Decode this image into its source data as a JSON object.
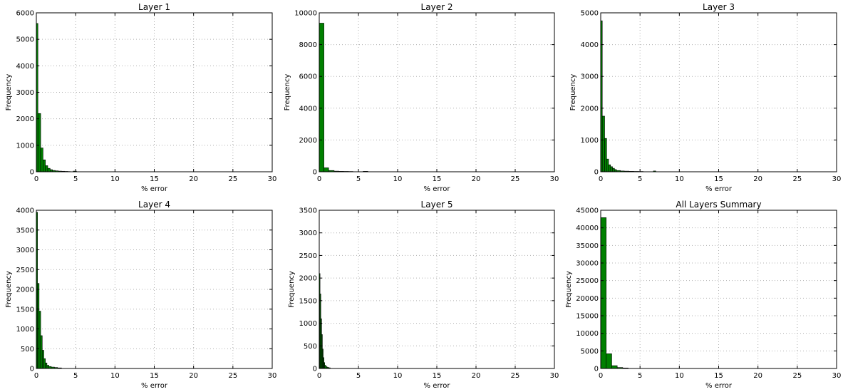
{
  "chart_data": [
    {
      "type": "bar",
      "title": "Layer 1",
      "xlabel": "% error",
      "ylabel": "Frequency",
      "xlim": [
        0,
        30
      ],
      "ylim": [
        0,
        6000
      ],
      "xticks": [
        "0",
        "5",
        "10",
        "15",
        "20",
        "25",
        "30"
      ],
      "yticks": [
        "0",
        "1000",
        "2000",
        "3000",
        "4000",
        "5000",
        "6000"
      ],
      "grid": true,
      "bar_color": "#008000",
      "bins": [
        {
          "x0": 0.0,
          "x1": 0.2,
          "value": 5600
        },
        {
          "x0": 0.2,
          "x1": 0.55,
          "value": 2200
        },
        {
          "x0": 0.55,
          "x1": 0.85,
          "value": 900
        },
        {
          "x0": 0.85,
          "x1": 1.15,
          "value": 450
        },
        {
          "x0": 1.15,
          "x1": 1.45,
          "value": 230
        },
        {
          "x0": 1.45,
          "x1": 1.75,
          "value": 130
        },
        {
          "x0": 1.75,
          "x1": 2.05,
          "value": 80
        },
        {
          "x0": 2.05,
          "x1": 2.4,
          "value": 50
        },
        {
          "x0": 2.4,
          "x1": 2.8,
          "value": 35
        },
        {
          "x0": 2.8,
          "x1": 3.2,
          "value": 25
        },
        {
          "x0": 3.2,
          "x1": 3.6,
          "value": 20
        },
        {
          "x0": 3.6,
          "x1": 4.0,
          "value": 15
        },
        {
          "x0": 4.0,
          "x1": 4.3,
          "value": 10
        },
        {
          "x0": 4.7,
          "x1": 5.1,
          "value": 25
        }
      ]
    },
    {
      "type": "bar",
      "title": "Layer 2",
      "xlabel": "% error",
      "ylabel": "Frequency",
      "xlim": [
        0,
        30
      ],
      "ylim": [
        0,
        10000
      ],
      "xticks": [
        "0",
        "5",
        "10",
        "15",
        "20",
        "25",
        "30"
      ],
      "yticks": [
        "0",
        "2000",
        "4000",
        "6000",
        "8000",
        "10000"
      ],
      "grid": true,
      "bar_color": "#008000",
      "bins": [
        {
          "x0": 0.0,
          "x1": 0.6,
          "value": 9350
        },
        {
          "x0": 0.6,
          "x1": 1.2,
          "value": 250
        },
        {
          "x0": 1.2,
          "x1": 1.9,
          "value": 80
        },
        {
          "x0": 1.9,
          "x1": 2.5,
          "value": 40
        },
        {
          "x0": 2.5,
          "x1": 3.1,
          "value": 30
        },
        {
          "x0": 3.1,
          "x1": 3.7,
          "value": 25
        },
        {
          "x0": 3.7,
          "x1": 4.3,
          "value": 20
        },
        {
          "x0": 5.6,
          "x1": 6.2,
          "value": 30
        }
      ]
    },
    {
      "type": "bar",
      "title": "Layer 3",
      "xlabel": "% error",
      "ylabel": "Frequency",
      "xlim": [
        0,
        30
      ],
      "ylim": [
        0,
        5000
      ],
      "xticks": [
        "0",
        "5",
        "10",
        "15",
        "20",
        "25",
        "30"
      ],
      "yticks": [
        "0",
        "1000",
        "2000",
        "3000",
        "4000",
        "5000"
      ],
      "grid": true,
      "bar_color": "#008000",
      "bins": [
        {
          "x0": 0.0,
          "x1": 0.2,
          "value": 4750
        },
        {
          "x0": 0.2,
          "x1": 0.5,
          "value": 1750
        },
        {
          "x0": 0.5,
          "x1": 0.75,
          "value": 1050
        },
        {
          "x0": 0.75,
          "x1": 1.0,
          "value": 400
        },
        {
          "x0": 1.0,
          "x1": 1.25,
          "value": 220
        },
        {
          "x0": 1.25,
          "x1": 1.5,
          "value": 160
        },
        {
          "x0": 1.5,
          "x1": 1.75,
          "value": 110
        },
        {
          "x0": 1.75,
          "x1": 2.0,
          "value": 70
        },
        {
          "x0": 2.0,
          "x1": 2.5,
          "value": 40
        },
        {
          "x0": 2.5,
          "x1": 3.0,
          "value": 25
        },
        {
          "x0": 3.0,
          "x1": 3.6,
          "value": 20
        },
        {
          "x0": 3.6,
          "x1": 4.2,
          "value": 15
        },
        {
          "x0": 4.2,
          "x1": 4.8,
          "value": 12
        },
        {
          "x0": 4.8,
          "x1": 5.4,
          "value": 10
        },
        {
          "x0": 6.7,
          "x1": 7.0,
          "value": 25
        }
      ]
    },
    {
      "type": "bar",
      "title": "Layer 4",
      "xlabel": "% error",
      "ylabel": "Frequency",
      "xlim": [
        0,
        30
      ],
      "ylim": [
        0,
        4000
      ],
      "xticks": [
        "0",
        "5",
        "10",
        "15",
        "20",
        "25",
        "30"
      ],
      "yticks": [
        "0",
        "500",
        "1000",
        "1500",
        "2000",
        "2500",
        "3000",
        "3500",
        "4000"
      ],
      "grid": true,
      "bar_color": "#008000",
      "bins": [
        {
          "x0": 0.0,
          "x1": 0.15,
          "value": 3950
        },
        {
          "x0": 0.15,
          "x1": 0.35,
          "value": 2150
        },
        {
          "x0": 0.35,
          "x1": 0.55,
          "value": 1450
        },
        {
          "x0": 0.55,
          "x1": 0.75,
          "value": 830
        },
        {
          "x0": 0.75,
          "x1": 0.95,
          "value": 460
        },
        {
          "x0": 0.95,
          "x1": 1.15,
          "value": 250
        },
        {
          "x0": 1.15,
          "x1": 1.35,
          "value": 140
        },
        {
          "x0": 1.35,
          "x1": 1.6,
          "value": 80
        },
        {
          "x0": 1.6,
          "x1": 1.9,
          "value": 50
        },
        {
          "x0": 1.9,
          "x1": 2.3,
          "value": 35
        },
        {
          "x0": 2.3,
          "x1": 2.7,
          "value": 25
        },
        {
          "x0": 2.7,
          "x1": 3.2,
          "value": 15
        }
      ]
    },
    {
      "type": "bar",
      "title": "Layer 5",
      "xlabel": "% error",
      "ylabel": "Frequency",
      "xlim": [
        0,
        30
      ],
      "ylim": [
        0,
        3500
      ],
      "xticks": [
        "0",
        "5",
        "10",
        "15",
        "20",
        "25",
        "30"
      ],
      "yticks": [
        "0",
        "500",
        "1000",
        "1500",
        "2000",
        "2500",
        "3000",
        "3500"
      ],
      "grid": true,
      "bar_color": "#008000",
      "bins": [
        {
          "x0": 0.0,
          "x1": 0.1,
          "value": 2100
        },
        {
          "x0": 0.1,
          "x1": 0.2,
          "value": 1650
        },
        {
          "x0": 0.2,
          "x1": 0.3,
          "value": 1100
        },
        {
          "x0": 0.3,
          "x1": 0.4,
          "value": 750
        },
        {
          "x0": 0.4,
          "x1": 0.5,
          "value": 430
        },
        {
          "x0": 0.5,
          "x1": 0.6,
          "value": 240
        },
        {
          "x0": 0.6,
          "x1": 0.7,
          "value": 130
        },
        {
          "x0": 0.7,
          "x1": 0.85,
          "value": 70
        },
        {
          "x0": 0.85,
          "x1": 1.0,
          "value": 40
        },
        {
          "x0": 1.0,
          "x1": 1.2,
          "value": 25
        },
        {
          "x0": 1.2,
          "x1": 1.4,
          "value": 15
        }
      ]
    },
    {
      "type": "bar",
      "title": "All Layers Summary",
      "xlabel": "% error",
      "ylabel": "Frequency",
      "xlim": [
        0,
        30
      ],
      "ylim": [
        0,
        45000
      ],
      "xticks": [
        "0",
        "5",
        "10",
        "15",
        "20",
        "25",
        "30"
      ],
      "yticks": [
        "0",
        "5000",
        "10000",
        "15000",
        "20000",
        "25000",
        "30000",
        "35000",
        "40000",
        "45000"
      ],
      "grid": true,
      "bar_color": "#008000",
      "bins": [
        {
          "x0": 0.0,
          "x1": 0.7,
          "value": 42900
        },
        {
          "x0": 0.7,
          "x1": 1.4,
          "value": 4200
        },
        {
          "x0": 1.4,
          "x1": 2.1,
          "value": 800
        },
        {
          "x0": 2.1,
          "x1": 2.8,
          "value": 280
        },
        {
          "x0": 2.8,
          "x1": 3.5,
          "value": 150
        }
      ]
    }
  ]
}
